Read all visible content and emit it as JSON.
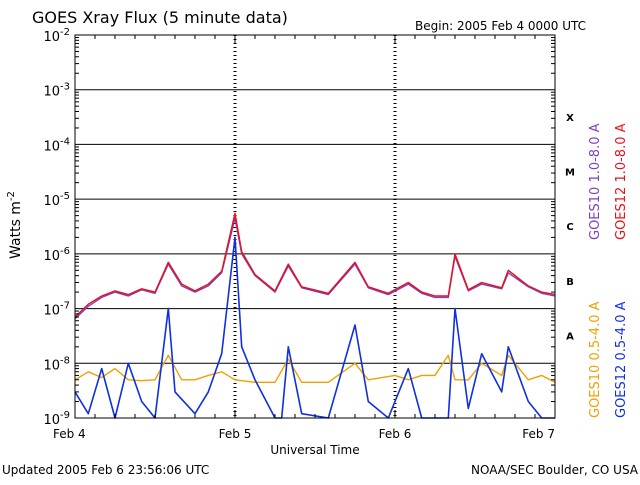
{
  "header": {
    "title": "GOES Xray Flux (5 minute data)",
    "begin": "Begin:  2005 Feb 4 0000 UTC"
  },
  "footer": {
    "updated": "Updated 2005 Feb  6 23:56:06 UTC",
    "credit": "NOAA/SEC Boulder, CO USA"
  },
  "colors": {
    "goes10_long": "#7f3fbf",
    "goes12_long": "#e8101a",
    "goes10_short": "#f0a000",
    "goes12_short": "#1030e0",
    "grid": "#000000"
  },
  "chart_data": {
    "type": "line",
    "title": "GOES Xray Flux (5 minute data)",
    "xlabel": "Universal Time",
    "ylabel": "Watts m",
    "ylabel_superscript": "-2",
    "yscale": "log",
    "ylim": [
      1e-09,
      0.01
    ],
    "y_ticks": [
      {
        "value": 0.01,
        "base": "10",
        "exp": "-2"
      },
      {
        "value": 0.001,
        "base": "10",
        "exp": "-3"
      },
      {
        "value": 0.0001,
        "base": "10",
        "exp": "-4"
      },
      {
        "value": 1e-05,
        "base": "10",
        "exp": "-5"
      },
      {
        "value": 1e-06,
        "base": "10",
        "exp": "-6"
      },
      {
        "value": 1e-07,
        "base": "10",
        "exp": "-7"
      },
      {
        "value": 1e-08,
        "base": "10",
        "exp": "-8"
      },
      {
        "value": 1e-09,
        "base": "10",
        "exp": "-9"
      }
    ],
    "xlim": [
      "2005-02-04 00:00",
      "2005-02-07 00:00"
    ],
    "x_ticks": [
      {
        "value": "2005-02-04 00:00",
        "label": "Feb 4"
      },
      {
        "value": "2005-02-05 00:00",
        "label": "Feb 5"
      },
      {
        "value": "2005-02-06 00:00",
        "label": "Feb 6"
      },
      {
        "value": "2005-02-07 00:00",
        "label": "Feb 7"
      }
    ],
    "flare_classes": [
      {
        "label": "X",
        "value": 0.00032
      },
      {
        "label": "M",
        "value": 3.2e-05
      },
      {
        "label": "C",
        "value": 3.2e-06
      },
      {
        "label": "B",
        "value": 3.2e-07
      },
      {
        "label": "A",
        "value": 3.2e-08
      }
    ],
    "grid": true,
    "legend_placement": "right",
    "series": [
      {
        "name": "GOES10 1.0-8.0 A",
        "color": "#7f3fbf",
        "points": [
          [
            "2005-02-04 00:00",
            6.5e-08
          ],
          [
            "2005-02-04 02:00",
            1.1e-07
          ],
          [
            "2005-02-04 04:00",
            1.6e-07
          ],
          [
            "2005-02-04 06:00",
            2e-07
          ],
          [
            "2005-02-04 08:00",
            1.7e-07
          ],
          [
            "2005-02-04 10:00",
            2.2e-07
          ],
          [
            "2005-02-04 12:00",
            1.9e-07
          ],
          [
            "2005-02-04 14:00",
            6.5e-07
          ],
          [
            "2005-02-04 16:00",
            2.6e-07
          ],
          [
            "2005-02-04 18:00",
            2e-07
          ],
          [
            "2005-02-04 20:00",
            2.6e-07
          ],
          [
            "2005-02-04 22:00",
            4.5e-07
          ],
          [
            "2005-02-05 00:00",
            4.5e-06
          ],
          [
            "2005-02-05 01:00",
            1e-06
          ],
          [
            "2005-02-05 03:00",
            4e-07
          ],
          [
            "2005-02-05 06:00",
            2e-07
          ],
          [
            "2005-02-05 08:00",
            6e-07
          ],
          [
            "2005-02-05 10:00",
            2.4e-07
          ],
          [
            "2005-02-05 14:00",
            1.8e-07
          ],
          [
            "2005-02-05 18:00",
            6.5e-07
          ],
          [
            "2005-02-05 20:00",
            2.4e-07
          ],
          [
            "2005-02-05 23:00",
            1.8e-07
          ],
          [
            "2005-02-06 02:00",
            2.8e-07
          ],
          [
            "2005-02-06 04:00",
            1.9e-07
          ],
          [
            "2005-02-06 06:00",
            1.6e-07
          ],
          [
            "2005-02-06 08:00",
            1.6e-07
          ],
          [
            "2005-02-06 09:00",
            9e-07
          ],
          [
            "2005-02-06 11:00",
            2.1e-07
          ],
          [
            "2005-02-06 13:00",
            2.8e-07
          ],
          [
            "2005-02-06 16:00",
            2.3e-07
          ],
          [
            "2005-02-06 17:00",
            4.5e-07
          ],
          [
            "2005-02-06 20:00",
            2.5e-07
          ],
          [
            "2005-02-06 22:00",
            1.9e-07
          ],
          [
            "2005-02-07 00:00",
            1.7e-07
          ]
        ]
      },
      {
        "name": "GOES12 1.0-8.0 A",
        "color": "#e8101a",
        "points": [
          [
            "2005-02-04 00:00",
            7e-08
          ],
          [
            "2005-02-04 02:00",
            1.2e-07
          ],
          [
            "2005-02-04 04:00",
            1.7e-07
          ],
          [
            "2005-02-04 06:00",
            2.1e-07
          ],
          [
            "2005-02-04 08:00",
            1.8e-07
          ],
          [
            "2005-02-04 10:00",
            2.3e-07
          ],
          [
            "2005-02-04 12:00",
            2e-07
          ],
          [
            "2005-02-04 14:00",
            7e-07
          ],
          [
            "2005-02-04 16:00",
            2.8e-07
          ],
          [
            "2005-02-04 18:00",
            2.1e-07
          ],
          [
            "2005-02-04 20:00",
            2.8e-07
          ],
          [
            "2005-02-04 22:00",
            4.8e-07
          ],
          [
            "2005-02-05 00:00",
            5.5e-06
          ],
          [
            "2005-02-05 01:00",
            1.1e-06
          ],
          [
            "2005-02-05 03:00",
            4.2e-07
          ],
          [
            "2005-02-05 06:00",
            2.1e-07
          ],
          [
            "2005-02-05 08:00",
            6.5e-07
          ],
          [
            "2005-02-05 10:00",
            2.5e-07
          ],
          [
            "2005-02-05 14:00",
            1.9e-07
          ],
          [
            "2005-02-05 18:00",
            7e-07
          ],
          [
            "2005-02-05 20:00",
            2.5e-07
          ],
          [
            "2005-02-05 23:00",
            1.9e-07
          ],
          [
            "2005-02-06 02:00",
            3e-07
          ],
          [
            "2005-02-06 04:00",
            2e-07
          ],
          [
            "2005-02-06 06:00",
            1.7e-07
          ],
          [
            "2005-02-06 08:00",
            1.7e-07
          ],
          [
            "2005-02-06 09:00",
            1e-06
          ],
          [
            "2005-02-06 11:00",
            2.2e-07
          ],
          [
            "2005-02-06 13:00",
            3e-07
          ],
          [
            "2005-02-06 16:00",
            2.4e-07
          ],
          [
            "2005-02-06 17:00",
            5e-07
          ],
          [
            "2005-02-06 20:00",
            2.6e-07
          ],
          [
            "2005-02-06 22:00",
            2e-07
          ],
          [
            "2005-02-07 00:00",
            1.8e-07
          ]
        ]
      },
      {
        "name": "GOES10 0.5-4.0 A",
        "color": "#f0a000",
        "points": [
          [
            "2005-02-04 00:00",
            5e-09
          ],
          [
            "2005-02-04 02:00",
            7e-09
          ],
          [
            "2005-02-04 04:00",
            5.5e-09
          ],
          [
            "2005-02-04 06:00",
            8e-09
          ],
          [
            "2005-02-04 08:00",
            5e-09
          ],
          [
            "2005-02-04 10:00",
            4.8e-09
          ],
          [
            "2005-02-04 12:00",
            5e-09
          ],
          [
            "2005-02-04 14:00",
            1.4e-08
          ],
          [
            "2005-02-04 16:00",
            5e-09
          ],
          [
            "2005-02-04 18:00",
            5e-09
          ],
          [
            "2005-02-04 20:00",
            6e-09
          ],
          [
            "2005-02-04 22:00",
            7e-09
          ],
          [
            "2005-02-05 00:00",
            5e-09
          ],
          [
            "2005-02-05 03:00",
            4.5e-09
          ],
          [
            "2005-02-05 06:00",
            4.5e-09
          ],
          [
            "2005-02-05 08:00",
            1.2e-08
          ],
          [
            "2005-02-05 10:00",
            4.5e-09
          ],
          [
            "2005-02-05 14:00",
            4.5e-09
          ],
          [
            "2005-02-05 18:00",
            1e-08
          ],
          [
            "2005-02-05 20:00",
            5e-09
          ],
          [
            "2005-02-06 00:00",
            6e-09
          ],
          [
            "2005-02-06 02:00",
            5e-09
          ],
          [
            "2005-02-06 04:00",
            6e-09
          ],
          [
            "2005-02-06 06:00",
            6e-09
          ],
          [
            "2005-02-06 08:00",
            1.4e-08
          ],
          [
            "2005-02-06 09:00",
            5e-09
          ],
          [
            "2005-02-06 11:00",
            5e-09
          ],
          [
            "2005-02-06 13:00",
            1e-08
          ],
          [
            "2005-02-06 16:00",
            6e-09
          ],
          [
            "2005-02-06 17:00",
            1.4e-08
          ],
          [
            "2005-02-06 20:00",
            5e-09
          ],
          [
            "2005-02-06 22:00",
            6e-09
          ],
          [
            "2005-02-07 00:00",
            4.5e-09
          ]
        ]
      },
      {
        "name": "GOES12 0.5-4.0 A",
        "color": "#1030e0",
        "points": [
          [
            "2005-02-04 00:00",
            3e-09
          ],
          [
            "2005-02-04 02:00",
            1.2e-09
          ],
          [
            "2005-02-04 04:00",
            8e-09
          ],
          [
            "2005-02-04 06:00",
            1e-09
          ],
          [
            "2005-02-04 08:00",
            1e-08
          ],
          [
            "2005-02-04 10:00",
            2e-09
          ],
          [
            "2005-02-04 12:00",
            1e-09
          ],
          [
            "2005-02-04 14:00",
            1e-07
          ],
          [
            "2005-02-04 15:00",
            3e-09
          ],
          [
            "2005-02-04 18:00",
            1.2e-09
          ],
          [
            "2005-02-04 20:00",
            3e-09
          ],
          [
            "2005-02-04 22:00",
            1.5e-08
          ],
          [
            "2005-02-05 00:00",
            2e-06
          ],
          [
            "2005-02-05 01:00",
            2e-08
          ],
          [
            "2005-02-05 03:00",
            5e-09
          ],
          [
            "2005-02-05 06:00",
            1e-09
          ],
          [
            "2005-02-05 07:00",
            1e-09
          ],
          [
            "2005-02-05 08:00",
            2e-08
          ],
          [
            "2005-02-05 10:00",
            1.2e-09
          ],
          [
            "2005-02-05 14:00",
            1e-09
          ],
          [
            "2005-02-05 18:00",
            5e-08
          ],
          [
            "2005-02-05 20:00",
            2e-09
          ],
          [
            "2005-02-05 23:00",
            1e-09
          ],
          [
            "2005-02-06 02:00",
            8e-09
          ],
          [
            "2005-02-06 04:00",
            1e-09
          ],
          [
            "2005-02-06 06:00",
            1e-09
          ],
          [
            "2005-02-06 08:00",
            1e-09
          ],
          [
            "2005-02-06 09:00",
            1e-07
          ],
          [
            "2005-02-06 11:00",
            1.5e-09
          ],
          [
            "2005-02-06 13:00",
            1.5e-08
          ],
          [
            "2005-02-06 16:00",
            3e-09
          ],
          [
            "2005-02-06 17:00",
            2e-08
          ],
          [
            "2005-02-06 20:00",
            2e-09
          ],
          [
            "2005-02-06 22:00",
            1e-09
          ],
          [
            "2005-02-07 00:00",
            1e-09
          ]
        ]
      }
    ]
  }
}
